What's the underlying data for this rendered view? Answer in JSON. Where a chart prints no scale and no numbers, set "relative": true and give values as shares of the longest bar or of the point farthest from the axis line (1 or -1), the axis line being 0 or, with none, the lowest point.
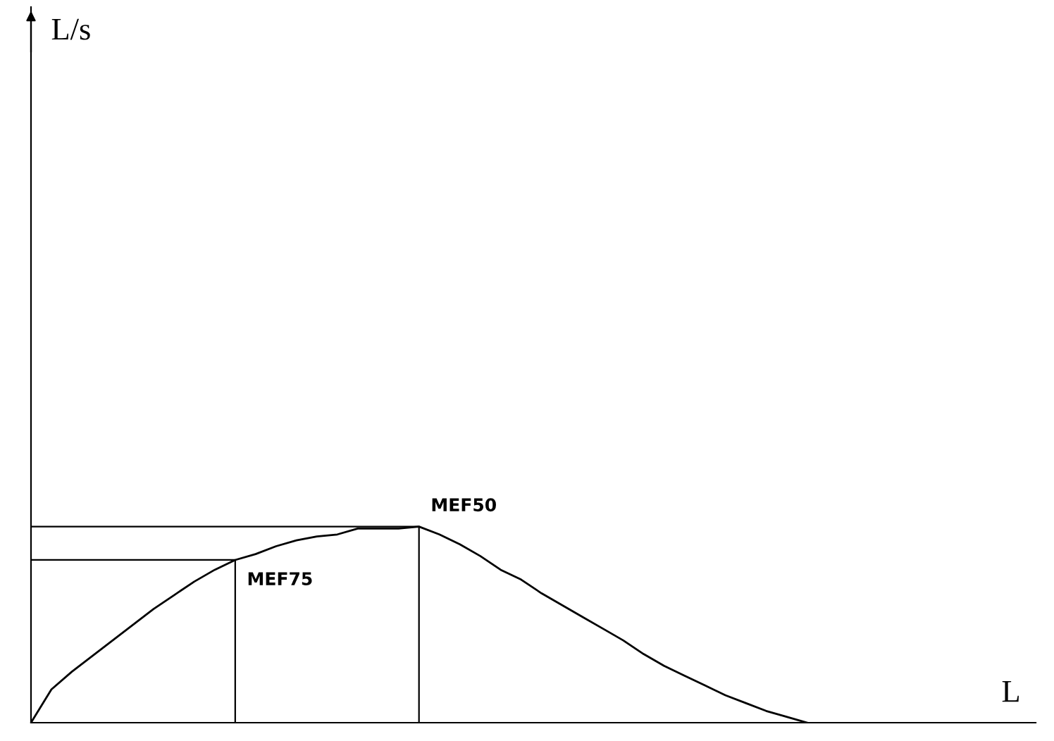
{
  "chart_data": {
    "type": "line",
    "relative": true,
    "categories": [
      null,
      null,
      null,
      null,
      null,
      null,
      null,
      null,
      null,
      null,
      null,
      null,
      null,
      null,
      null,
      null,
      null,
      null,
      null,
      null,
      null,
      null,
      null,
      null,
      null,
      null,
      null,
      null,
      null,
      null,
      null,
      null,
      null,
      null,
      null,
      null,
      null,
      null,
      null
    ],
    "series": [
      {
        "color": "#000000",
        "values": [
          0,
          0.17,
          0.26,
          0.34,
          0.42,
          0.5,
          0.58,
          0.65,
          0.72,
          0.78,
          0.83,
          0.86,
          0.9,
          0.93,
          0.95,
          0.96,
          0.99,
          0.99,
          0.99,
          1.0,
          0.96,
          0.91,
          0.85,
          0.78,
          0.73,
          0.66,
          0.6,
          0.54,
          0.48,
          0.42,
          0.35,
          0.29,
          0.24,
          0.19,
          0.14,
          0.1,
          0.06,
          0.03,
          0
        ]
      }
    ],
    "ref_lines": [
      {
        "axis": "y",
        "value": 0.83,
        "label": "MEF75",
        "color": "#000000"
      },
      {
        "axis": "y",
        "value": 1.0,
        "label": "MEF50",
        "color": "#000000"
      }
    ],
    "annotations": [
      "L/s",
      "L"
    ],
    "marker": "none",
    "line_style": "solid"
  }
}
